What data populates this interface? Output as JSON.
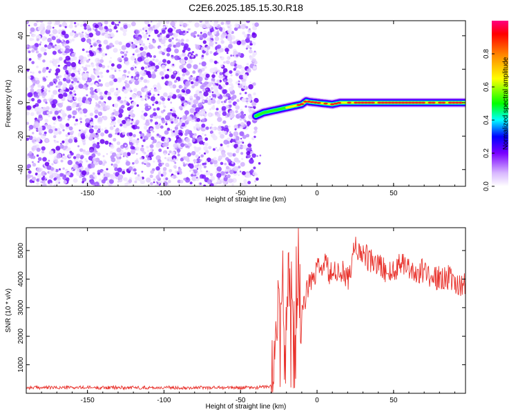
{
  "title": "C2E6.2025.185.15.30.R18",
  "chart_data": [
    {
      "type": "heatmap",
      "xlabel": "Height of straight line (km)",
      "ylabel": "Frequency (Hz)",
      "xlim": [
        -190,
        97
      ],
      "ylim": [
        -50,
        49
      ],
      "xticks": [
        -150,
        -100,
        -50,
        0,
        50
      ],
      "yticks": [
        -40,
        -20,
        0,
        20,
        40
      ],
      "noise_region_x": [
        -190,
        -40
      ],
      "ridge": {
        "x": [
          -40,
          -35,
          -30,
          -25,
          -20,
          -15,
          -10,
          -7,
          -5,
          0,
          5,
          10,
          15,
          20,
          30,
          40,
          50,
          60,
          70,
          80,
          90,
          97
        ],
        "y": [
          -8,
          -6,
          -5,
          -4,
          -3,
          -2,
          -1,
          1,
          0.5,
          0,
          -0.5,
          -1,
          0,
          0,
          0,
          0,
          0,
          0,
          0,
          0,
          0,
          0
        ]
      },
      "colorbar": {
        "label": "Normalized spectral amplitude",
        "range": [
          0,
          1
        ],
        "ticks": [
          "0.0",
          "0.2",
          "0.4",
          "0.6",
          "0.8"
        ]
      }
    },
    {
      "type": "line",
      "xlabel": "Height of straight line (km)",
      "ylabel": "SNR (10 * v/v)",
      "xlim": [
        -190,
        97
      ],
      "ylim": [
        0,
        5800
      ],
      "xticks": [
        -150,
        -100,
        -50,
        0,
        50
      ],
      "yticks": [
        1000,
        2000,
        3000,
        4000,
        5000
      ],
      "color": "#e8302a",
      "series": [
        {
          "x": [
            -190,
            -100,
            -40,
            -30,
            -28,
            -25,
            -22,
            -20,
            -18,
            -15,
            -12,
            -10,
            -5,
            0,
            5,
            10,
            15,
            20,
            25,
            30,
            35,
            40,
            45,
            50,
            55,
            60,
            65,
            70,
            75,
            80,
            85,
            90,
            97
          ],
          "y": [
            200,
            200,
            200,
            250,
            900,
            2800,
            3500,
            3000,
            4200,
            3500,
            4300,
            3000,
            3800,
            4300,
            4500,
            4100,
            4300,
            4000,
            5100,
            4900,
            4600,
            4500,
            4300,
            4200,
            4700,
            4400,
            4200,
            4300,
            4100,
            4000,
            4100,
            3800,
            3900
          ]
        }
      ]
    }
  ]
}
